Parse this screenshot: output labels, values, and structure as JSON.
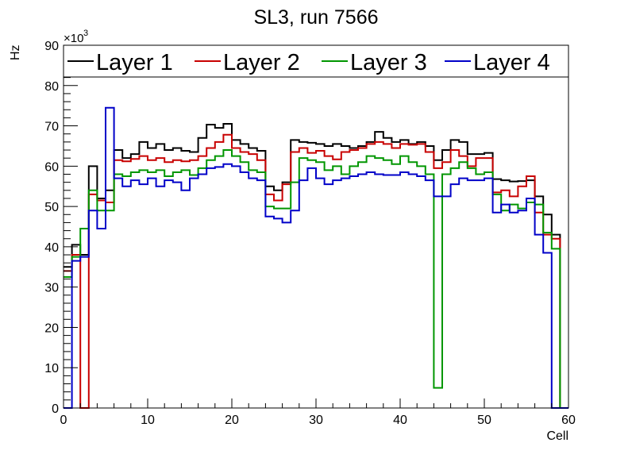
{
  "chart_data": {
    "type": "line",
    "title": "SL3, run 7566",
    "xlabel": "Cell",
    "ylabel": "Hz",
    "y_exponent_label": "×10",
    "y_exponent_power": "3",
    "xlim": [
      0,
      60
    ],
    "ylim": [
      0,
      90
    ],
    "x_ticks": [
      0,
      10,
      20,
      30,
      40,
      50,
      60
    ],
    "y_ticks": [
      0,
      10,
      20,
      30,
      40,
      50,
      60,
      70,
      80,
      90
    ],
    "legend_position": "top",
    "x": [
      0,
      1,
      2,
      3,
      4,
      5,
      6,
      7,
      8,
      9,
      10,
      11,
      12,
      13,
      14,
      15,
      16,
      17,
      18,
      19,
      20,
      21,
      22,
      23,
      24,
      25,
      26,
      27,
      28,
      29,
      30,
      31,
      32,
      33,
      34,
      35,
      36,
      37,
      38,
      39,
      40,
      41,
      42,
      43,
      44,
      45,
      46,
      47,
      48,
      49,
      50,
      51,
      52,
      53,
      54,
      55,
      56,
      57,
      58,
      59
    ],
    "series": [
      {
        "name": "Layer 1",
        "color": "#000000",
        "values": [
          35,
          40.5,
          38,
          60,
          52,
          54,
          64,
          62,
          63,
          66,
          64.5,
          65.5,
          64,
          64.5,
          63.8,
          63.5,
          67,
          70.3,
          69.5,
          70.5,
          66.5,
          65.5,
          64.5,
          63.8,
          55,
          54,
          56,
          66.5,
          66,
          65.8,
          65.5,
          65,
          65.5,
          65,
          64.5,
          65,
          66,
          68.5,
          67,
          66,
          66.5,
          65.5,
          66,
          65,
          61.5,
          64,
          66.5,
          66,
          63,
          63,
          63.3,
          56.8,
          56.5,
          56.2,
          56.3,
          56.5,
          52.5,
          48,
          43,
          0
        ]
      },
      {
        "name": "Layer 2",
        "color": "#c80000",
        "values": [
          34,
          38,
          0,
          53,
          51.5,
          51,
          61.5,
          61.2,
          61.8,
          62.5,
          61.5,
          62,
          61,
          61.5,
          61.2,
          61.5,
          62.5,
          64.5,
          66,
          67.8,
          64.5,
          63.5,
          63,
          61.5,
          53,
          51.5,
          55.5,
          63.5,
          64.5,
          63.3,
          63.8,
          62.5,
          61.7,
          63.5,
          64,
          64.5,
          65.5,
          66,
          65.5,
          64.5,
          65.5,
          65.3,
          65.5,
          63.5,
          59.5,
          61,
          64,
          62.5,
          60,
          62,
          62,
          53.5,
          54,
          52.5,
          55,
          57.5,
          48.5,
          43,
          42,
          0
        ]
      },
      {
        "name": "Layer 3",
        "color": "#009600",
        "values": [
          32.5,
          37.5,
          44.5,
          54,
          49,
          49,
          58,
          57.5,
          58.5,
          59,
          58.5,
          59,
          57.5,
          58.5,
          59,
          57.8,
          59.5,
          61.5,
          62.5,
          64,
          62.5,
          61,
          59,
          58.5,
          50,
          49.5,
          49.5,
          56,
          62,
          61.5,
          61,
          59,
          60,
          58,
          60,
          61,
          62.5,
          62,
          61.5,
          60.5,
          62.5,
          61,
          60,
          58,
          5,
          58,
          59.5,
          61,
          59.5,
          58,
          58.5,
          53,
          49,
          50.5,
          49.5,
          51,
          50.5,
          43.5,
          39.5,
          0
        ]
      },
      {
        "name": "Layer 4",
        "color": "#0000c8",
        "values": [
          0,
          36.5,
          37.5,
          49,
          44.5,
          74.5,
          57,
          55,
          56.5,
          55.5,
          57,
          55,
          56.5,
          56,
          54,
          57,
          58,
          59.5,
          59.8,
          60.5,
          60,
          58.5,
          57,
          56.5,
          47.5,
          47,
          46,
          49,
          56.5,
          59.5,
          57,
          55.5,
          56.5,
          57,
          57.5,
          58,
          58.5,
          58,
          57.8,
          57.8,
          58.5,
          58,
          57.5,
          56.5,
          52.5,
          52.5,
          55.5,
          57,
          56.5,
          56.5,
          57,
          48.5,
          50.5,
          48.5,
          49,
          52,
          43,
          38.5,
          0,
          0
        ]
      }
    ]
  }
}
